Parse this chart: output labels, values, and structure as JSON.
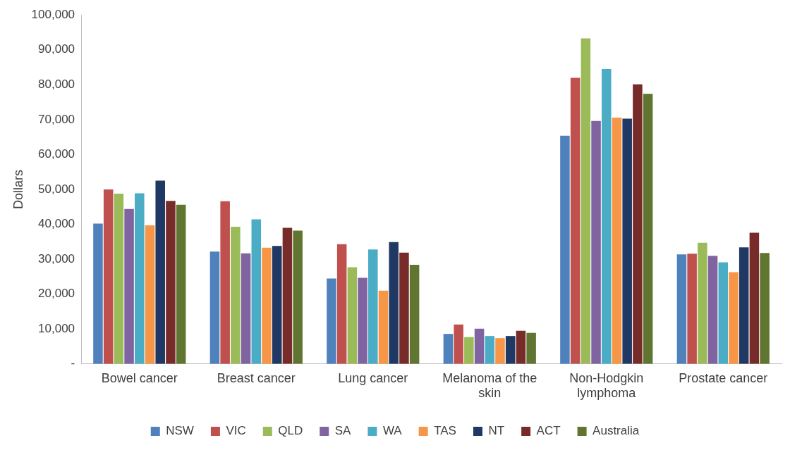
{
  "chart_data": {
    "type": "bar",
    "ylabel": "Dollars",
    "categories": [
      "Bowel cancer",
      "Breast cancer",
      "Lung cancer",
      "Melanoma of the skin",
      "Non-Hodgkin lymphoma",
      "Prostate cancer"
    ],
    "series": [
      {
        "name": "NSW",
        "color": "#4f81bd",
        "values": [
          40200,
          32200,
          24500,
          8600,
          65400,
          31400
        ]
      },
      {
        "name": "VIC",
        "color": "#c0504d",
        "values": [
          50000,
          46600,
          34300,
          11300,
          82000,
          31600
        ]
      },
      {
        "name": "QLD",
        "color": "#9bbb59",
        "values": [
          48800,
          39300,
          27700,
          7700,
          93300,
          34700
        ]
      },
      {
        "name": "SA",
        "color": "#8064a2",
        "values": [
          44400,
          31700,
          24700,
          10100,
          69600,
          31000
        ]
      },
      {
        "name": "WA",
        "color": "#4bacc6",
        "values": [
          48900,
          41400,
          32800,
          8000,
          84500,
          29100
        ]
      },
      {
        "name": "TAS",
        "color": "#f79646",
        "values": [
          39700,
          33300,
          21000,
          7400,
          70600,
          26300
        ]
      },
      {
        "name": "NT",
        "color": "#1f3864",
        "values": [
          52500,
          33800,
          34900,
          8000,
          70300,
          33400
        ]
      },
      {
        "name": "ACT",
        "color": "#772c2a",
        "values": [
          46700,
          39000,
          31900,
          9500,
          80100,
          37600
        ]
      },
      {
        "name": "Australia",
        "color": "#5f7530",
        "values": [
          45600,
          38200,
          28400,
          8900,
          77400,
          31800
        ]
      }
    ],
    "ylim": [
      0,
      100000
    ],
    "yticks": [
      {
        "value": 0,
        "label": "-"
      },
      {
        "value": 10000,
        "label": "10,000"
      },
      {
        "value": 20000,
        "label": "20,000"
      },
      {
        "value": 30000,
        "label": "30,000"
      },
      {
        "value": 40000,
        "label": "40,000"
      },
      {
        "value": 50000,
        "label": "50,000"
      },
      {
        "value": 60000,
        "label": "60,000"
      },
      {
        "value": 70000,
        "label": "70,000"
      },
      {
        "value": 80000,
        "label": "80,000"
      },
      {
        "value": 90000,
        "label": "90,000"
      },
      {
        "value": 100000,
        "label": "100,000"
      }
    ],
    "grid": false,
    "legend": "bottom"
  }
}
